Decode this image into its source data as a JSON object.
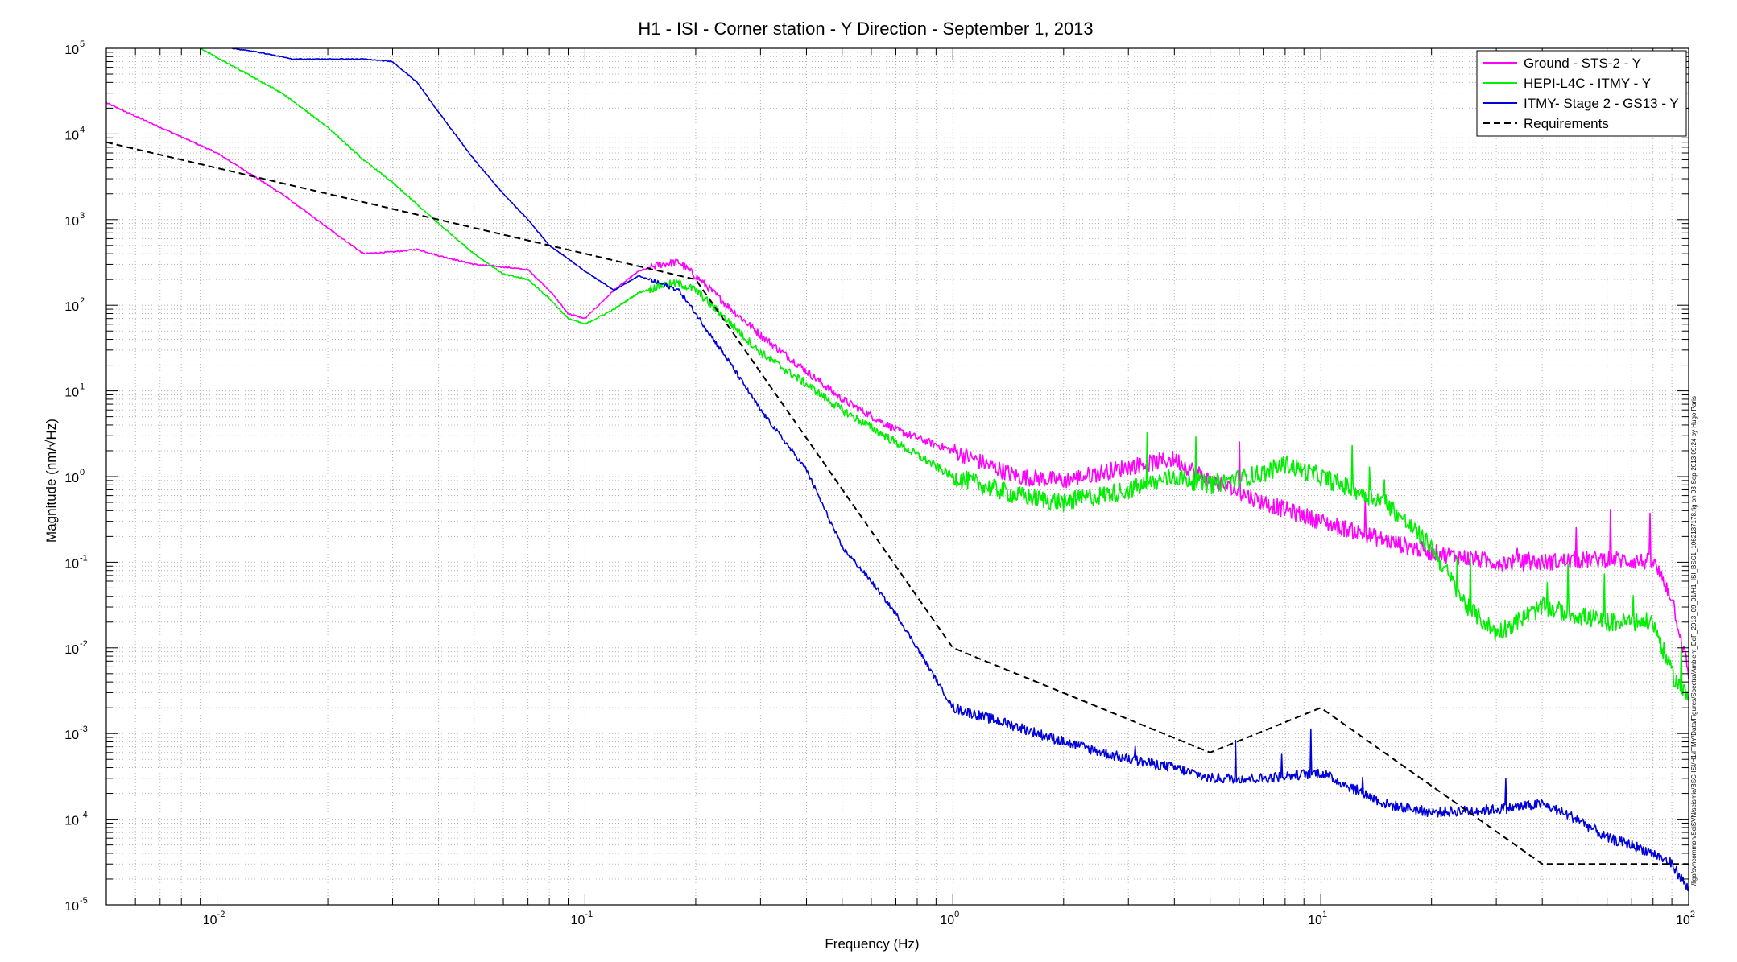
{
  "chart_data": {
    "type": "line",
    "title": "H1 - ISI - Corner station - Y Direction - September 1, 2013",
    "xlabel": "Frequency (Hz)",
    "ylabel": "Magnitude (nm/√Hz)",
    "x_scale": "log",
    "y_scale": "log",
    "xlim": [
      0.005,
      100
    ],
    "ylim": [
      1e-05,
      100000
    ],
    "grid": true,
    "legend_position": "top-right",
    "x_ticks": [
      {
        "base": "10",
        "exp": "-2",
        "value": 0.01
      },
      {
        "base": "10",
        "exp": "-1",
        "value": 0.1
      },
      {
        "base": "10",
        "exp": "0",
        "value": 1
      },
      {
        "base": "10",
        "exp": "1",
        "value": 10
      },
      {
        "base": "10",
        "exp": "2",
        "value": 100
      }
    ],
    "y_ticks": [
      {
        "base": "10",
        "exp": "-5",
        "value": 1e-05
      },
      {
        "base": "10",
        "exp": "-4",
        "value": 0.0001
      },
      {
        "base": "10",
        "exp": "-3",
        "value": 0.001
      },
      {
        "base": "10",
        "exp": "-2",
        "value": 0.01
      },
      {
        "base": "10",
        "exp": "-1",
        "value": 0.1
      },
      {
        "base": "10",
        "exp": "0",
        "value": 1
      },
      {
        "base": "10",
        "exp": "1",
        "value": 10
      },
      {
        "base": "10",
        "exp": "2",
        "value": 100
      },
      {
        "base": "10",
        "exp": "3",
        "value": 1000
      },
      {
        "base": "10",
        "exp": "4",
        "value": 10000
      },
      {
        "base": "10",
        "exp": "5",
        "value": 100000
      }
    ],
    "side_note": "/ligo/svncommon/SeiSVN/seismic/BSC-ISI/H1/ITMY/Data/Figures/Spectra/Ambient_DoF_2013_09_01/H1_ISI_BSC1_1062137178.fig on 03-Sep-2013 09:24 by Hugo Paris",
    "series": [
      {
        "name": "Ground - STS-2 - Y",
        "color": "#ff00ff",
        "noise": 0.2,
        "x": [
          0.005,
          0.01,
          0.015,
          0.02,
          0.025,
          0.03,
          0.035,
          0.04,
          0.05,
          0.06,
          0.07,
          0.08,
          0.09,
          0.1,
          0.12,
          0.14,
          0.16,
          0.18,
          0.2,
          0.25,
          0.3,
          0.4,
          0.5,
          0.7,
          1.0,
          1.5,
          2.0,
          3.0,
          4.0,
          5.0,
          7.0,
          10.0,
          15.0,
          20.0,
          30.0,
          40.0,
          60.0,
          80.0,
          90.0,
          100.0
        ],
        "y": [
          23000,
          6000,
          2000,
          800,
          400,
          420,
          450,
          380,
          300,
          280,
          260,
          150,
          80,
          70,
          150,
          250,
          300,
          320,
          220,
          90,
          45,
          17,
          8,
          3.5,
          2,
          1.0,
          0.9,
          1.3,
          1.6,
          0.9,
          0.5,
          0.3,
          0.18,
          0.13,
          0.1,
          0.1,
          0.11,
          0.1,
          0.04,
          0.005
        ]
      },
      {
        "name": "HEPI-L4C - ITMY - Y",
        "color": "#00ee00",
        "noise": 0.22,
        "x": [
          0.009,
          0.015,
          0.02,
          0.025,
          0.03,
          0.04,
          0.05,
          0.06,
          0.07,
          0.08,
          0.09,
          0.1,
          0.12,
          0.14,
          0.16,
          0.18,
          0.2,
          0.25,
          0.3,
          0.4,
          0.5,
          0.7,
          1.0,
          1.5,
          2.0,
          3.0,
          4.0,
          5.0,
          7.0,
          8.0,
          10.0,
          15.0,
          20.0,
          25.0,
          30.0,
          40.0,
          60.0,
          80.0,
          90.0,
          100.0
        ],
        "y": [
          100000,
          30000,
          12000,
          5000,
          2700,
          900,
          400,
          230,
          200,
          120,
          70,
          60,
          90,
          140,
          170,
          180,
          150,
          60,
          28,
          12,
          6,
          2.5,
          1.0,
          0.6,
          0.5,
          0.7,
          1.0,
          0.8,
          1.1,
          1.4,
          1.0,
          0.5,
          0.15,
          0.03,
          0.015,
          0.03,
          0.02,
          0.02,
          0.005,
          0.0025
        ]
      },
      {
        "name": "ITMY- Stage 2 - GS13 - Y",
        "color": "#0000dd",
        "noise": 0.12,
        "x": [
          0.011,
          0.013,
          0.016,
          0.02,
          0.025,
          0.03,
          0.035,
          0.04,
          0.05,
          0.06,
          0.07,
          0.08,
          0.09,
          0.1,
          0.12,
          0.14,
          0.16,
          0.18,
          0.2,
          0.25,
          0.3,
          0.4,
          0.5,
          0.6,
          0.7,
          0.8,
          1.0,
          1.5,
          2.0,
          3.0,
          4.0,
          5.0,
          7.0,
          10.0,
          15.0,
          20.0,
          30.0,
          40.0,
          50.0,
          60.0,
          70.0,
          80.0,
          90.0,
          100.0
        ],
        "y": [
          100000,
          90000,
          75000,
          75000,
          75000,
          70000,
          40000,
          18000,
          5000,
          2000,
          1000,
          500,
          350,
          250,
          150,
          220,
          180,
          150,
          80,
          20,
          6,
          1.2,
          0.15,
          0.06,
          0.025,
          0.01,
          0.002,
          0.0012,
          0.0008,
          0.0005,
          0.0004,
          0.0003,
          0.0003,
          0.00035,
          0.00015,
          0.00012,
          0.00013,
          0.00015,
          0.0001,
          6e-05,
          5e-05,
          4e-05,
          3e-05,
          1.5e-05
        ]
      },
      {
        "name": "Requirements",
        "color": "#000000",
        "dashed": true,
        "noise": 0,
        "x": [
          0.005,
          0.01,
          0.02,
          0.05,
          0.1,
          0.2,
          1.0,
          5.0,
          10.0,
          40.0,
          100.0
        ],
        "y": [
          8000,
          4000,
          2000,
          800,
          400,
          200,
          0.01,
          0.0006,
          0.002,
          3e-05,
          3e-05
        ]
      }
    ]
  }
}
